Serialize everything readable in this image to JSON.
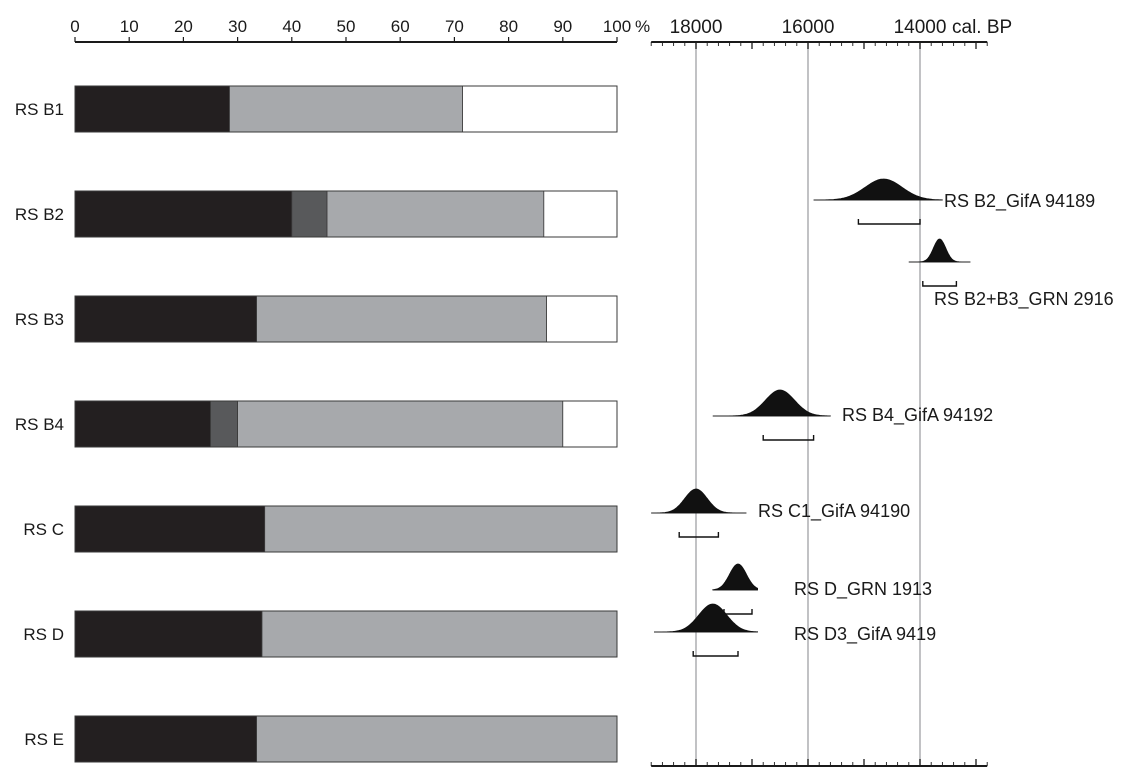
{
  "chart_data": [
    {
      "type": "bar",
      "orientation": "horizontal",
      "stacked": true,
      "xlim": [
        0,
        100
      ],
      "x_ticks": [
        0,
        10,
        20,
        30,
        40,
        50,
        60,
        70,
        80,
        90,
        100
      ],
      "x_unit": "%",
      "grid": false,
      "legend": "none",
      "categories": [
        "RS B1",
        "RS B2",
        "RS B3",
        "RS B4",
        "RS C",
        "RS D",
        "RS E"
      ],
      "series": [
        {
          "color": "#231f20",
          "values": [
            28.5,
            40,
            33.5,
            25,
            35,
            34.5,
            33.5
          ]
        },
        {
          "color": "#58595b",
          "values": [
            0,
            6.5,
            0,
            5,
            0,
            0,
            0
          ]
        },
        {
          "color": "#a7a9ac",
          "values": [
            43,
            40,
            53.5,
            60,
            65,
            65.5,
            66.5
          ]
        },
        {
          "color": "#ffffff",
          "values": [
            28.5,
            13.5,
            13,
            10,
            0,
            0,
            0
          ]
        }
      ]
    },
    {
      "type": "area",
      "subtype": "calibrated radiocarbon probability distributions",
      "x_reversed": true,
      "xlim": [
        18800,
        12800
      ],
      "x_ticks": [
        18000,
        16000,
        14000
      ],
      "x_unit": "cal. BP",
      "grid": true,
      "legend": "none",
      "series": [
        {
          "name": "RS B2_GifA 94189",
          "row": 1,
          "peak": 14650,
          "sigma": 330,
          "range_2sigma": [
            15100,
            14000
          ],
          "tail": [
            15900,
            13600
          ]
        },
        {
          "name": "RS B2+B3_GRN 2916",
          "row": 2,
          "peak": 13650,
          "sigma": 110,
          "range_2sigma": [
            13950,
            13350
          ],
          "tail": [
            14200,
            13100
          ]
        },
        {
          "name": "RS B4_GifA 94192",
          "row": 3,
          "peak": 16500,
          "sigma": 260,
          "range_2sigma": [
            16800,
            15900
          ],
          "tail": [
            17700,
            15600
          ]
        },
        {
          "name": "RS C1_GifA 94190",
          "row": 4,
          "peak": 18000,
          "sigma": 200,
          "range_2sigma": [
            18300,
            17600
          ],
          "tail": [
            18800,
            17100
          ]
        },
        {
          "name": "RS D_GRN 1913",
          "row": 5,
          "peak": 17250,
          "sigma": 150,
          "range_2sigma": [
            17500,
            17000
          ],
          "tail": [
            17700,
            16900
          ]
        },
        {
          "name": "RS D3_GifA 9419",
          "row": 6,
          "peak": 17700,
          "sigma": 250,
          "range_2sigma": [
            18050,
            17250
          ],
          "tail": [
            18750,
            16900
          ]
        }
      ]
    }
  ]
}
